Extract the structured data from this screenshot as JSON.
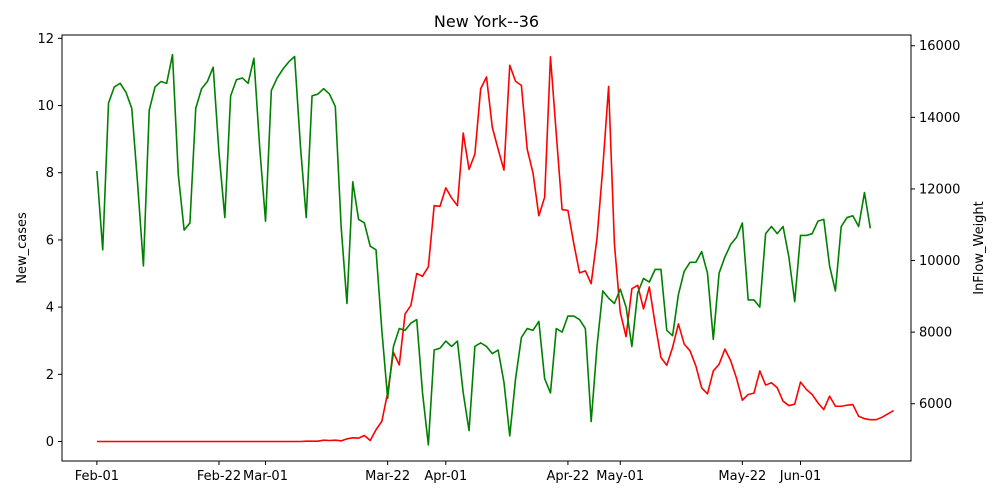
{
  "chart_data": {
    "type": "line",
    "title": "New York--36",
    "xlabel": "",
    "ylabel": "New_cases",
    "y2label": "InFlow_Weight",
    "x_ticks": [
      "Feb-01",
      "Feb-22",
      "Mar-01",
      "Mar-22",
      "Apr-01",
      "Apr-22",
      "May-01",
      "May-22",
      "Jun-01"
    ],
    "x_tick_days": [
      0,
      21,
      29,
      50,
      60,
      81,
      90,
      111,
      121
    ],
    "x_range_days": [
      -6,
      140
    ],
    "ylim": [
      -0.58,
      12.1
    ],
    "y_ticks": [
      0,
      2,
      4,
      6,
      8,
      10,
      12
    ],
    "y2lim": [
      4400,
      16300
    ],
    "y2_ticks": [
      6000,
      8000,
      10000,
      12000,
      14000,
      16000
    ],
    "grid": false,
    "series": [
      {
        "axis": "left",
        "color": "#ff0000",
        "values": [
          0,
          0,
          0,
          0,
          0,
          0,
          0,
          0,
          0,
          0,
          0,
          0,
          0,
          0,
          0,
          0,
          0,
          0,
          0,
          0,
          0,
          0,
          0,
          0,
          0,
          0,
          0,
          0,
          0,
          0,
          0,
          0,
          0,
          0,
          0,
          0,
          0.01,
          0.01,
          0.01,
          0.04,
          0.03,
          0.04,
          0.02,
          0.08,
          0.11,
          0.1,
          0.18,
          0.03,
          0.35,
          0.6,
          1.45,
          2.65,
          2.28,
          3.8,
          4.05,
          5,
          4.92,
          5.2,
          7.02,
          7,
          7.55,
          7.25,
          7.02,
          9.18,
          8.1,
          8.55,
          10.5,
          10.85,
          9.35,
          8.7,
          8.08,
          11.2,
          10.72,
          10.6,
          8.7,
          7.99,
          6.72,
          7.27,
          11.45,
          9.15,
          6.9,
          6.88,
          5.9,
          5.02,
          5.08,
          4.7,
          6.05,
          8.15,
          10.57,
          5.88,
          3.85,
          3.12,
          4.55,
          4.65,
          3.95,
          4.6,
          3.5,
          2.5,
          2.27,
          2.8,
          3.5,
          2.9,
          2.7,
          2.25,
          1.6,
          1.42,
          2.1,
          2.3,
          2.75,
          2.4,
          1.88,
          1.23,
          1.4,
          1.44,
          2.1,
          1.68,
          1.75,
          1.6,
          1.2,
          1.07,
          1.11,
          1.77,
          1.55,
          1.4,
          1.15,
          0.95,
          1.35,
          1.05,
          1.05,
          1.08,
          1.1,
          0.75,
          0.68,
          0.65,
          0.65,
          0.72,
          0.82,
          0.92
        ]
      },
      {
        "axis": "right",
        "color": "#008000",
        "values": [
          12500,
          10300,
          14400,
          14850,
          14950,
          14700,
          14250,
          12150,
          9850,
          14200,
          14850,
          15000,
          14950,
          15750,
          12400,
          10850,
          11050,
          14250,
          14800,
          15000,
          15400,
          13000,
          11200,
          14600,
          15050,
          15100,
          14950,
          15650,
          13150,
          11100,
          14750,
          15100,
          15350,
          15550,
          15700,
          13200,
          11200,
          14600,
          14650,
          14800,
          14650,
          14300,
          10950,
          8800,
          12200,
          11150,
          11050,
          10400,
          10300,
          8050,
          6150,
          7600,
          8100,
          8050,
          8250,
          8350,
          6300,
          4850,
          7500,
          7550,
          7750,
          7600,
          7750,
          6300,
          5250,
          7600,
          7700,
          7600,
          7400,
          7500,
          6600,
          5100,
          6700,
          7850,
          8100,
          8050,
          8300,
          6700,
          6300,
          8100,
          8000,
          8450,
          8450,
          8350,
          8100,
          5500,
          7600,
          9150,
          8950,
          8800,
          9200,
          8700,
          7600,
          9100,
          9500,
          9400,
          9750,
          9750,
          8050,
          7900,
          9050,
          9700,
          9950,
          9950,
          10250,
          9650,
          7800,
          9650,
          10100,
          10450,
          10650,
          11050,
          8900,
          8900,
          8700,
          10750,
          10950,
          10750,
          10950,
          10100,
          8850,
          10700,
          10700,
          10750,
          11100,
          11150,
          9850,
          9150,
          10950,
          11200,
          11250,
          10950,
          11900,
          10900
        ]
      }
    ]
  }
}
